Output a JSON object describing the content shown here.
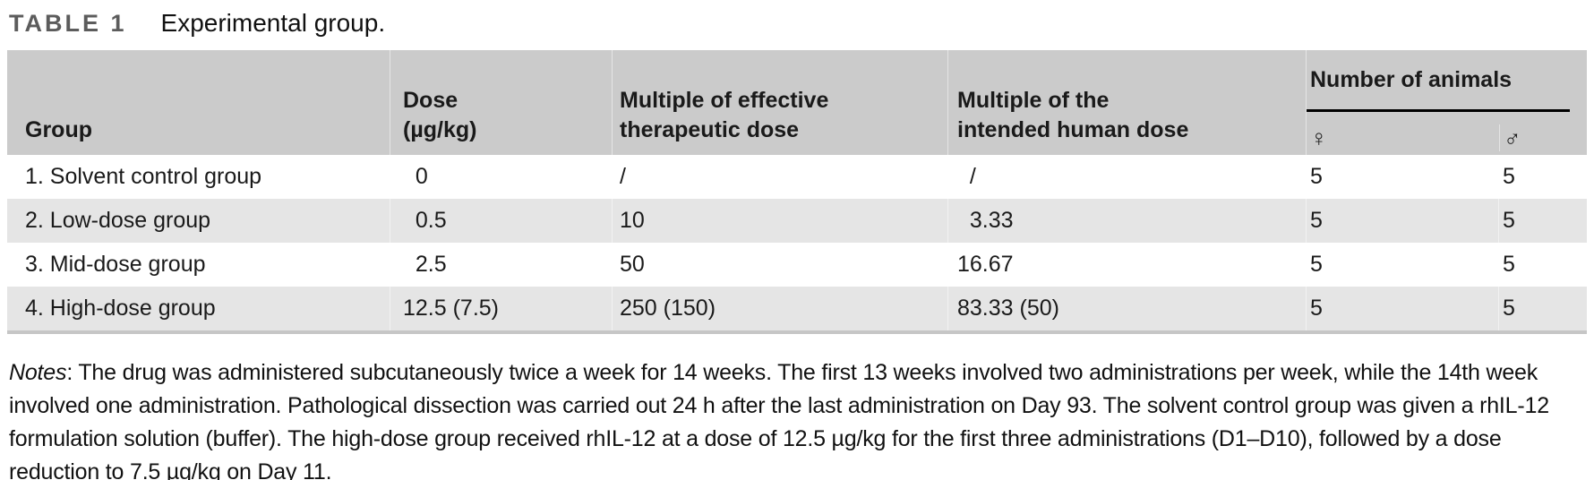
{
  "title": {
    "label": "TABLE 1",
    "caption": "Experimental group."
  },
  "table": {
    "columns": {
      "group": "Group",
      "dose_line1": "Dose",
      "dose_line2": "(µg/kg)",
      "multiple_effective_line1": "Multiple of effective",
      "multiple_effective_line2": "therapeutic dose",
      "multiple_human_line1": "Multiple of the",
      "multiple_human_line2": "intended human dose",
      "animals_group": "Number of animals",
      "female_symbol": "♀",
      "male_symbol": "♂"
    },
    "rows": [
      {
        "group": "1. Solvent control group",
        "dose": " 0",
        "multiple_effective": "/",
        "multiple_human": " /",
        "female": "5",
        "male": "5"
      },
      {
        "group": "2. Low-dose group",
        "dose": " 0.5",
        "multiple_effective": "10",
        "multiple_human": " 3.33",
        "female": "5",
        "male": "5"
      },
      {
        "group": "3. Mid-dose group",
        "dose": " 2.5",
        "multiple_effective": "50",
        "multiple_human": "16.67",
        "female": "5",
        "male": "5"
      },
      {
        "group": "4. High-dose group",
        "dose": "12.5 (7.5)",
        "multiple_effective": "250 (150)",
        "multiple_human": "83.33 (50)",
        "female": "5",
        "male": "5"
      }
    ]
  },
  "notes": {
    "label": "Notes",
    "text": ": The drug was administered subcutaneously twice a week for 14 weeks. The first 13 weeks involved two administrations per week, while the 14th week involved one administration. Pathological dissection was carried out 24 h after the last administration on Day 93. The solvent control group was given a rhIL-12 formulation solution (buffer). The high-dose group received rhIL-12 at a dose of 12.5 µg/kg for the first three administrations (D1–D10), followed by a dose reduction to 7.5 µg/kg on Day 11."
  },
  "colors": {
    "header_bg": "#cbcbcb",
    "row_alt_bg": "#e5e5e5",
    "table_bottom_border": "#c6c6c6",
    "title_label_color": "#5c5c5c",
    "rule_color": "#000000"
  }
}
